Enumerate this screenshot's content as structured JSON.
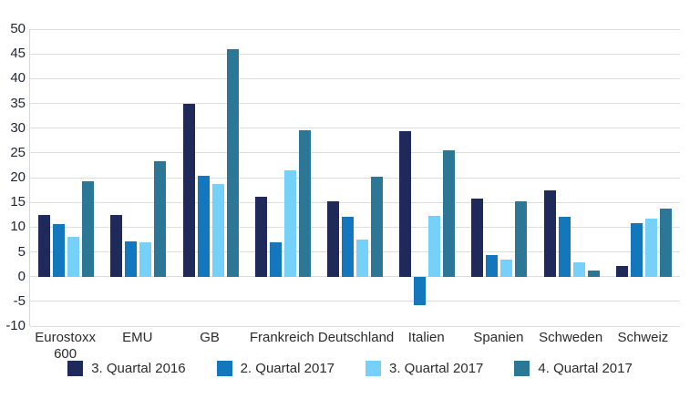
{
  "chart_data": {
    "type": "bar",
    "title": "",
    "xlabel": "",
    "ylabel": "",
    "categories": [
      "Eurostoxx 600",
      "EMU",
      "GB",
      "Frankreich",
      "Deutschland",
      "Italien",
      "Spanien",
      "Schweden",
      "Schweiz"
    ],
    "series": [
      {
        "name": "3. Quartal 2016",
        "color": "#1f2a5a",
        "values": [
          12.5,
          12.5,
          35.0,
          16.1,
          15.3,
          29.4,
          15.8,
          17.5,
          2.1
        ]
      },
      {
        "name": "2. Quartal 2017",
        "color": "#1377bd",
        "values": [
          10.7,
          7.2,
          20.3,
          6.9,
          12.0,
          -5.7,
          4.4,
          12.0,
          10.8
        ]
      },
      {
        "name": "3. Quartal 2017",
        "color": "#75d1f7",
        "values": [
          8.1,
          6.9,
          18.8,
          21.4,
          7.4,
          12.3,
          3.4,
          2.8,
          11.7
        ]
      },
      {
        "name": "4. Quartal 2017",
        "color": "#2c7795",
        "values": [
          19.2,
          23.4,
          46.0,
          29.6,
          20.1,
          25.6,
          15.3,
          1.3,
          13.8
        ]
      }
    ],
    "ylim": [
      -10,
      50
    ],
    "ytick_step": 5,
    "ytick_labels": [
      "50",
      "45",
      "40",
      "35",
      "30",
      "25",
      "20",
      "15",
      "10",
      "5",
      "0",
      "-5",
      "-10"
    ],
    "grid": true,
    "gridline_color": "#dcdddf",
    "background_color": "#ffffff",
    "legend_position": "bottom"
  }
}
